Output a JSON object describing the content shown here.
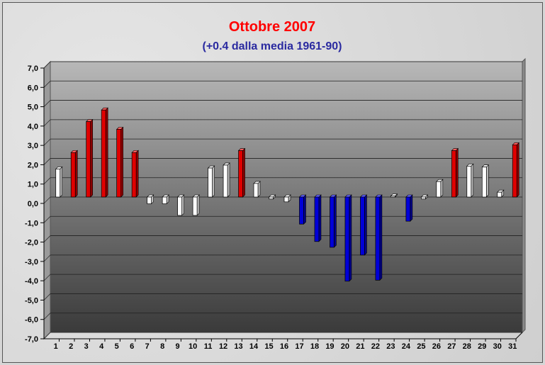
{
  "chart_data": {
    "type": "bar",
    "title": "Ottobre 2007",
    "subtitle": "(+0.4 dalla media 1961-90)",
    "xlabel": "",
    "ylabel": "",
    "ylim": [
      -7.0,
      7.0
    ],
    "y_ticks": [
      "7,0",
      "6,0",
      "5,0",
      "4,0",
      "3,0",
      "2,0",
      "1,0",
      "0,0",
      "-1,0",
      "-2,0",
      "-3,0",
      "-4,0",
      "-5,0",
      "-6,0",
      "-7,0"
    ],
    "grid": true,
    "categories": [
      "1",
      "2",
      "3",
      "4",
      "5",
      "6",
      "7",
      "8",
      "9",
      "10",
      "11",
      "12",
      "13",
      "14",
      "15",
      "16",
      "17",
      "18",
      "19",
      "20",
      "21",
      "22",
      "23",
      "24",
      "25",
      "26",
      "27",
      "28",
      "29",
      "30",
      "31"
    ],
    "values": [
      1.45,
      2.3,
      3.9,
      4.5,
      3.5,
      2.3,
      -0.35,
      -0.35,
      -0.95,
      -0.95,
      1.5,
      1.65,
      2.4,
      0.7,
      -0.1,
      -0.25,
      -1.4,
      -2.3,
      -2.6,
      -4.35,
      -3.0,
      -4.3,
      0.05,
      -1.25,
      -0.1,
      0.8,
      2.4,
      1.6,
      1.55,
      0.25,
      2.7
    ],
    "colors": {
      "warm": "#e00000",
      "cold": "#0000d8",
      "normal": "#ffffff",
      "title": "#ff0000",
      "subtitle": "#2a2aa0"
    }
  }
}
